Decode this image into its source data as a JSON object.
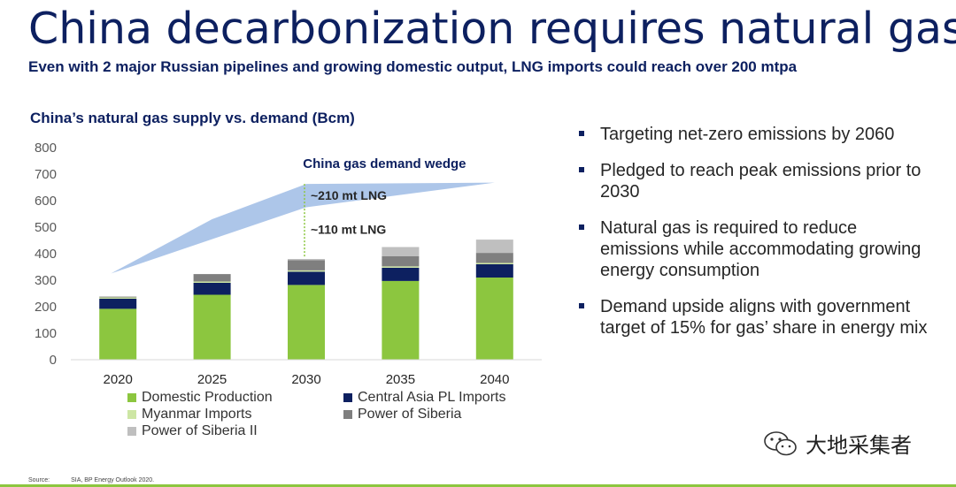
{
  "header": {
    "title": "China decarbonization requires natural gas",
    "subtitle": "Even with 2 major Russian pipelines and growing domestic output, LNG imports could reach over 200 mtpa"
  },
  "chart_data": {
    "type": "bar",
    "stacked": true,
    "title": "China’s natural gas supply vs. demand (Bcm)",
    "categories": [
      "2020",
      "2025",
      "2030",
      "2035",
      "2040"
    ],
    "yticks": [
      "0",
      "100",
      "200",
      "300",
      "400",
      "500",
      "600",
      "700",
      "800"
    ],
    "ylim": [
      0,
      800
    ],
    "grid": false,
    "legend_position": "bottom",
    "series": [
      {
        "name": "Domestic Production",
        "color": "#8cc63f",
        "values": [
          192,
          245,
          282,
          297,
          310
        ]
      },
      {
        "name": "Central Asia PL Imports",
        "color": "#0d2060",
        "values": [
          38,
          45,
          50,
          50,
          50
        ]
      },
      {
        "name": "Myanmar Imports",
        "color": "#cde6a4",
        "values": [
          5,
          5,
          5,
          5,
          5
        ]
      },
      {
        "name": "Power of Siberia",
        "color": "#7f7f7f",
        "values": [
          3,
          28,
          38,
          38,
          38
        ]
      },
      {
        "name": "Power of Siberia II",
        "color": "#bfbfbf",
        "values": [
          0,
          0,
          5,
          35,
          50
        ]
      }
    ],
    "demand_wedge": {
      "label": "China gas demand wedge",
      "color": "#a9c3e8",
      "upper": [
        {
          "x": "2020",
          "y": 325
        },
        {
          "x": "2025",
          "y": 530
        },
        {
          "x": "2030",
          "y": 663
        },
        {
          "x": "2040",
          "y": 668
        }
      ],
      "lower": [
        {
          "x": "2020",
          "y": 325
        },
        {
          "x": "2030",
          "y": 575
        },
        {
          "x": "2040",
          "y": 668
        }
      ]
    },
    "annotations": [
      {
        "text": "~210 mt LNG",
        "x": "2030",
        "from": 385,
        "to": 663
      },
      {
        "text": "~110 mt LNG",
        "x": "2030",
        "from": 385,
        "to": 575
      }
    ]
  },
  "bullets": [
    "Targeting net-zero emissions by 2060",
    "Pledged to reach peak emissions prior to 2030",
    "Natural gas is required to reduce emissions while accommodating growing energy consumption",
    "Demand upside aligns with government target of 15% for gas’ share in energy mix"
  ],
  "watermark": {
    "text": "大地采集者",
    "icon": "wechat-icon"
  },
  "footer": {
    "source_label": "Source:",
    "source_text": "SIA, BP Energy Outlook 2020."
  }
}
